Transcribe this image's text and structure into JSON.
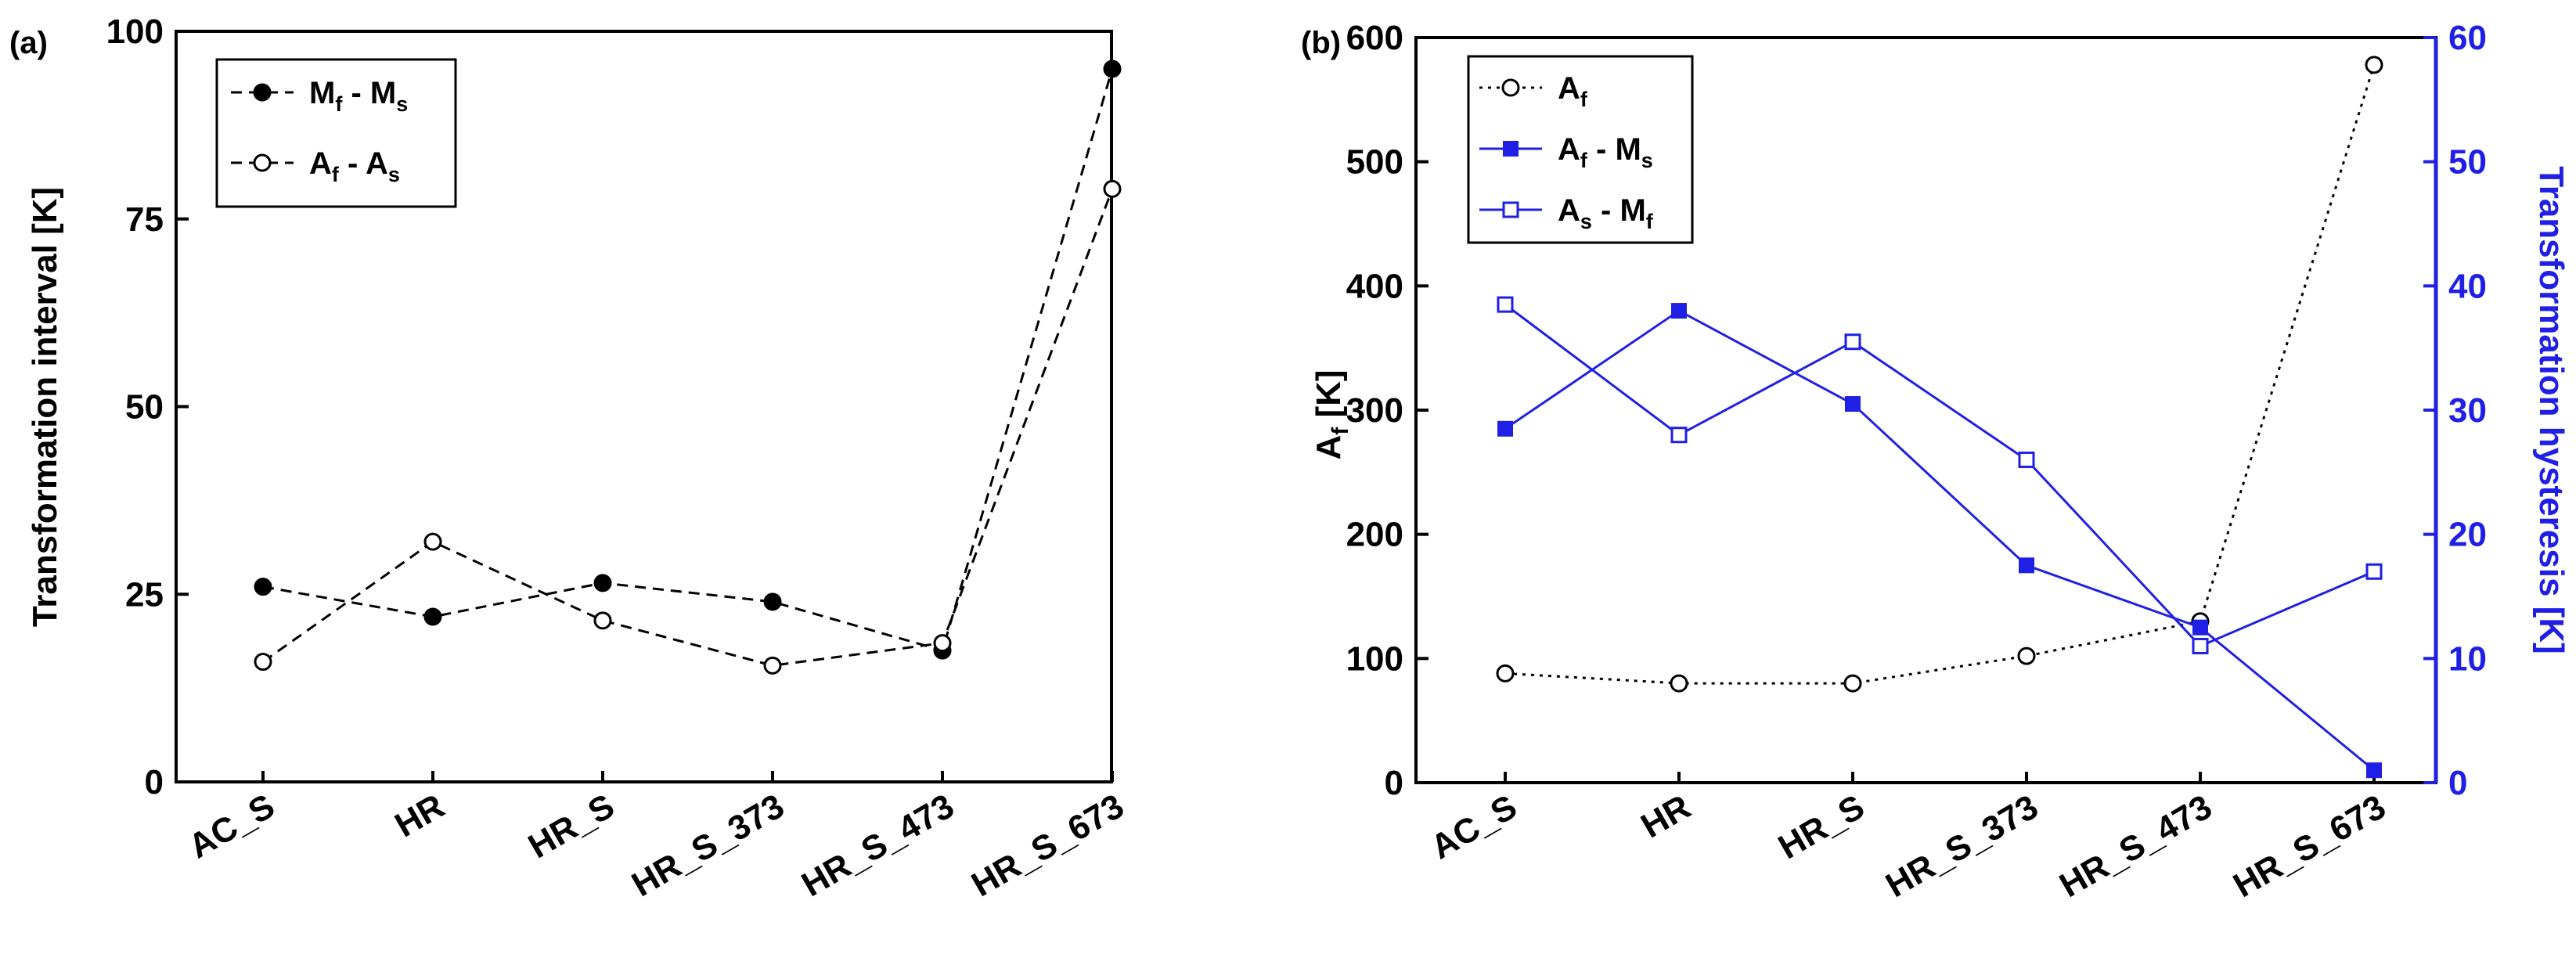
{
  "chart_data": [
    {
      "panel_label": "(a)",
      "type": "line",
      "categories": [
        "AC_S",
        "HR",
        "HR_S",
        "HR_S_373",
        "HR_S_473",
        "HR_S_673"
      ],
      "ylabel": "Transformation interval [K]",
      "ylim": [
        0,
        100
      ],
      "yticks": [
        0,
        25,
        50,
        75,
        100
      ],
      "legend_position": "top-left",
      "series": [
        {
          "name": "Mf - Ms",
          "label_parts": [
            "M",
            "f",
            " - M",
            "s"
          ],
          "marker": "half-filled-circle",
          "line": "dashed",
          "color": "#000000",
          "values": [
            26,
            22,
            26.5,
            24,
            17.5,
            95
          ]
        },
        {
          "name": "Af - As",
          "label_parts": [
            "A",
            "f",
            " - A",
            "s"
          ],
          "marker": "open-circle",
          "line": "dashed",
          "color": "#000000",
          "values": [
            16,
            32,
            21.5,
            15.5,
            18.5,
            79
          ]
        }
      ]
    },
    {
      "panel_label": "(b)",
      "type": "line",
      "categories": [
        "AC_S",
        "HR",
        "HR_S",
        "HR_S_373",
        "HR_S_473",
        "HR_S_673"
      ],
      "ylabel_parts": [
        "A",
        "f",
        " [K]"
      ],
      "ylim": [
        0,
        600
      ],
      "yticks": [
        0,
        100,
        200,
        300,
        400,
        500,
        600
      ],
      "y2label": "Transformation hysteresis [K]",
      "y2lim": [
        0,
        60
      ],
      "y2ticks": [
        0,
        10,
        20,
        30,
        40,
        50,
        60
      ],
      "legend_position": "top-left",
      "series": [
        {
          "name": "Af",
          "label_parts": [
            "A",
            "f",
            "",
            ""
          ],
          "axis": "left",
          "marker": "open-circle",
          "line": "dotted",
          "color": "#000000",
          "values": [
            88,
            80,
            80,
            102,
            130,
            578
          ]
        },
        {
          "name": "Af - Ms",
          "label_parts": [
            "A",
            "f",
            " - M",
            "s"
          ],
          "axis": "right",
          "marker": "filled-square",
          "line": "solid",
          "color": "#1f1fe6",
          "values": [
            28.5,
            38,
            30.5,
            17.5,
            12.5,
            1
          ]
        },
        {
          "name": "As - Mf",
          "label_parts": [
            "A",
            "s",
            " - M",
            "f"
          ],
          "axis": "right",
          "marker": "open-square",
          "line": "solid",
          "color": "#1f1fe6",
          "values": [
            38.5,
            28,
            35.5,
            26,
            11,
            17
          ]
        }
      ]
    }
  ]
}
